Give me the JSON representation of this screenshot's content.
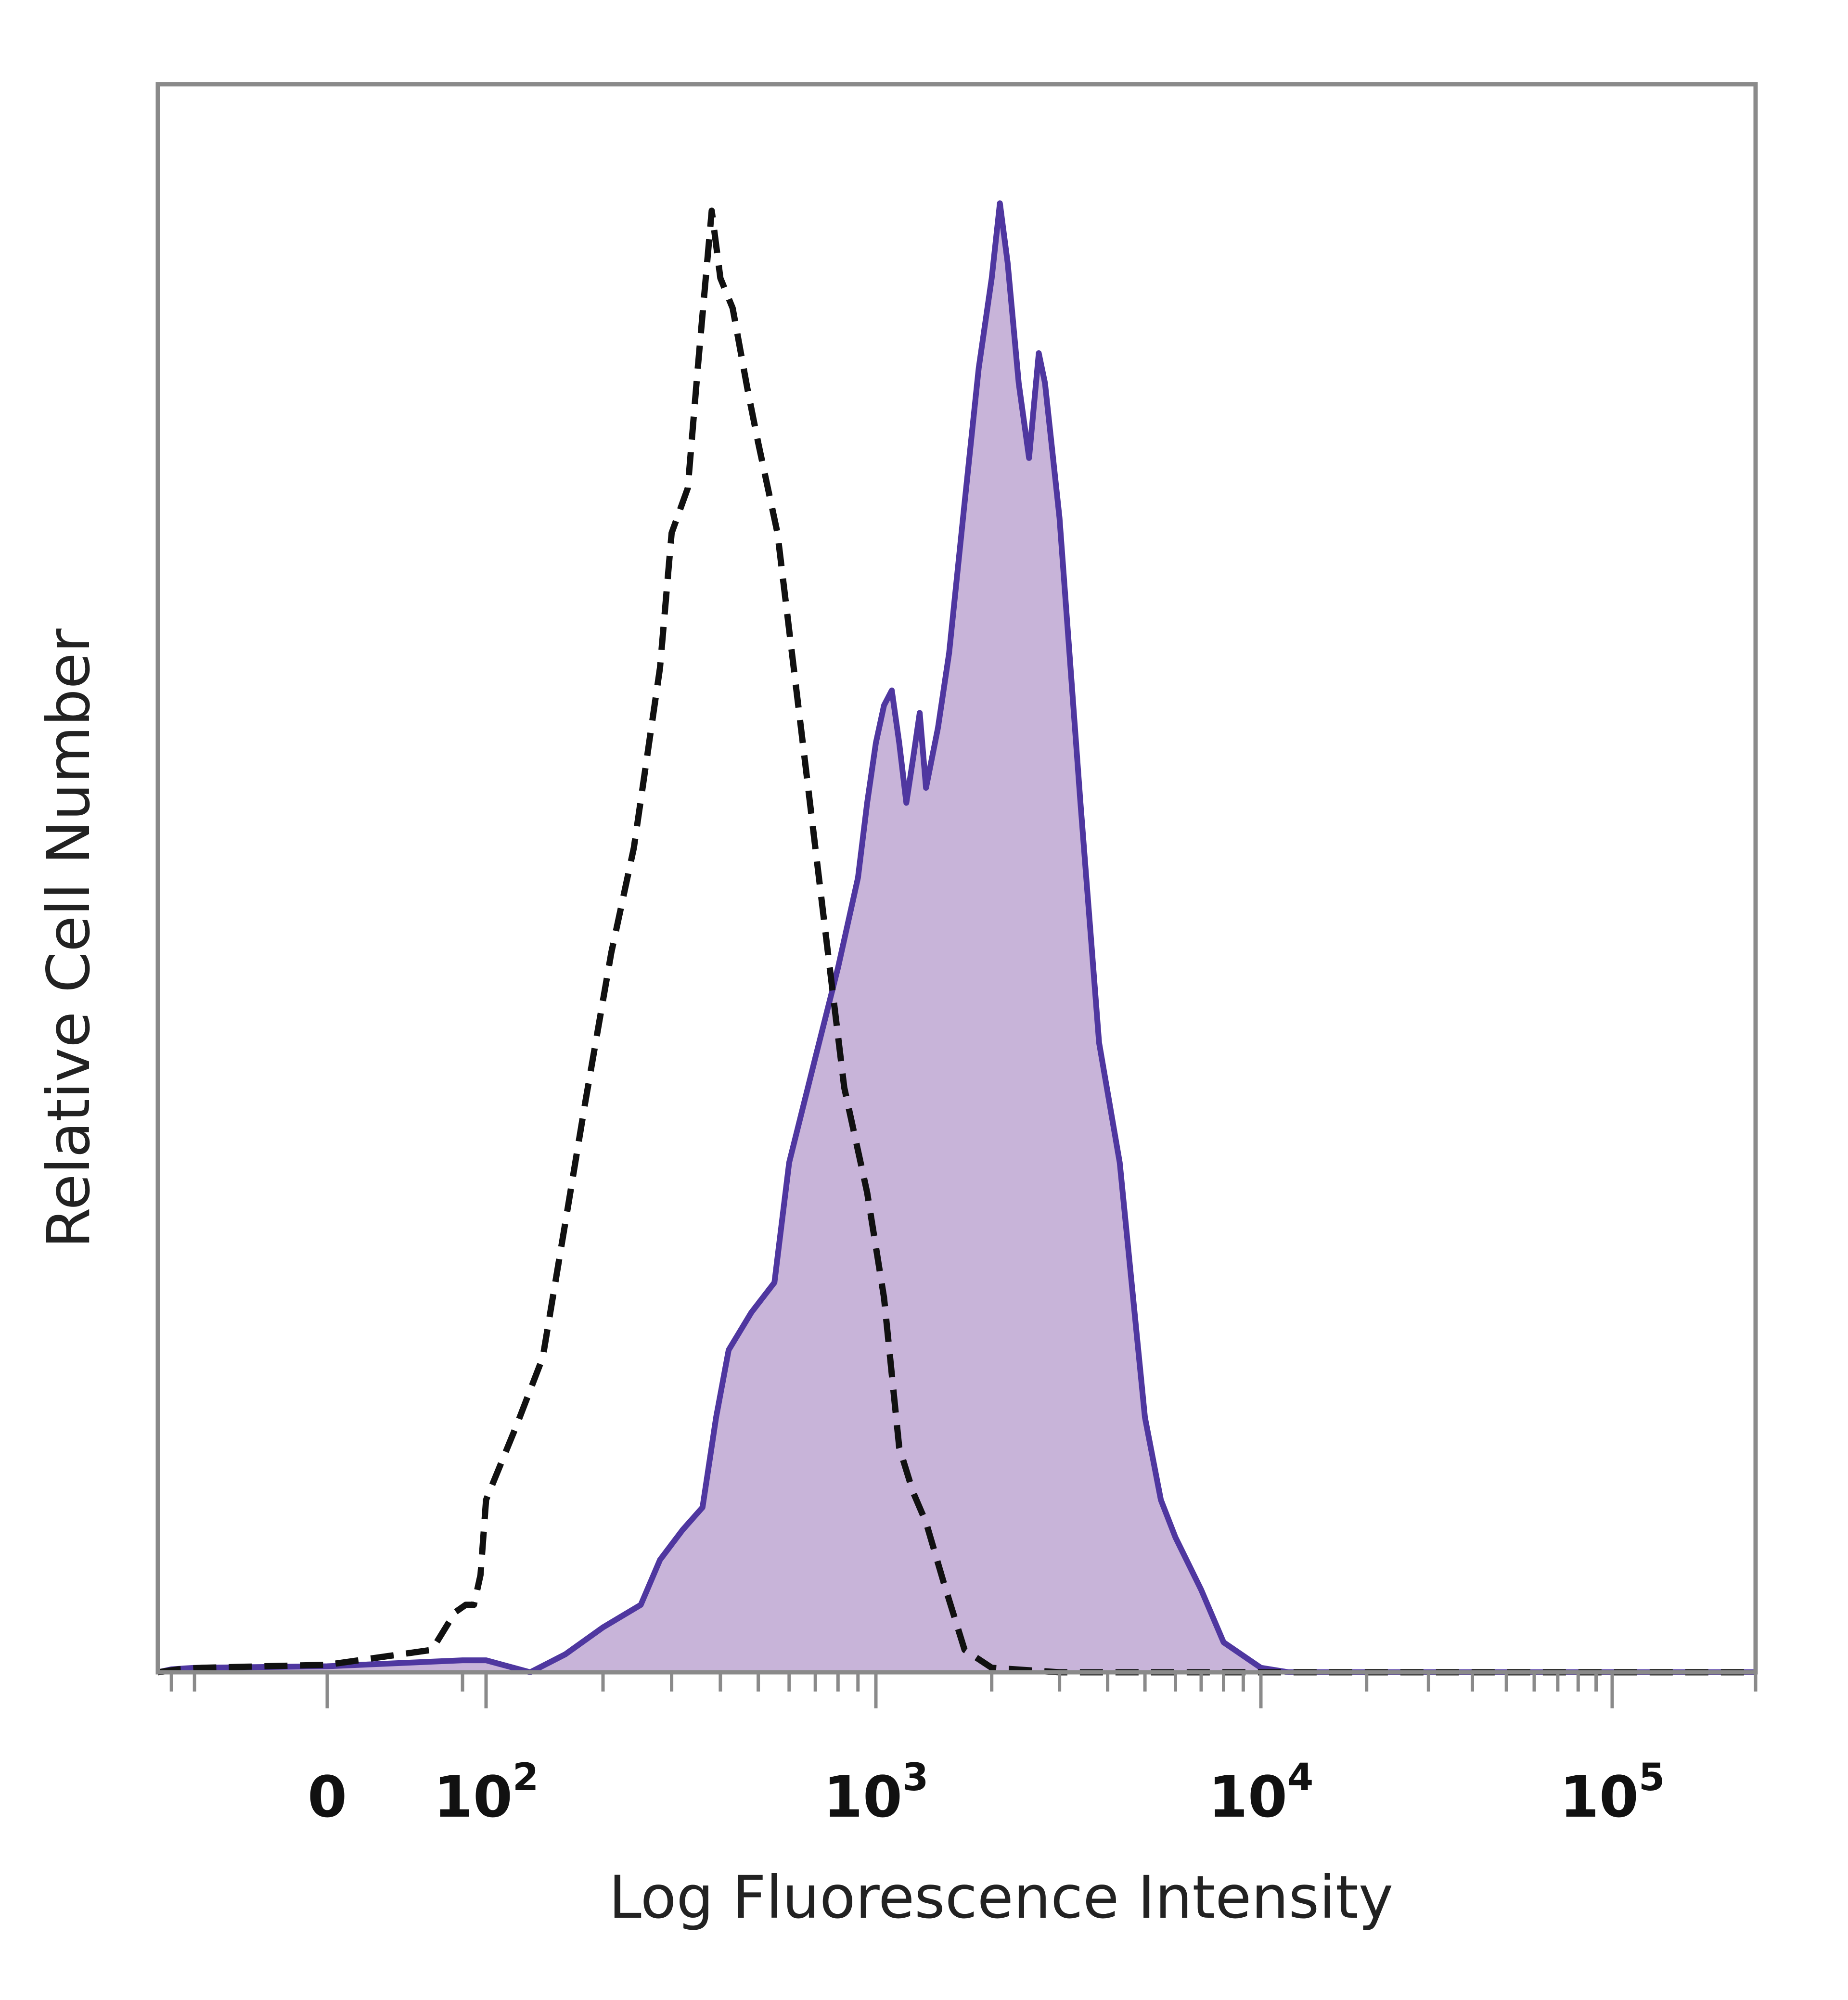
{
  "chart_data": {
    "type": "area",
    "title": "",
    "xlabel": "Log Fluorescence Intensity",
    "ylabel": "Relative Cell Number",
    "x_scale": "biexponential",
    "xlim": [
      -150,
      200000
    ],
    "ylim": [
      0,
      100
    ],
    "grid": false,
    "legend": "none",
    "x_ticks": [
      {
        "value": 0,
        "base": "0",
        "exp": ""
      },
      {
        "value": 100,
        "base": "10",
        "exp": "2"
      },
      {
        "value": 1000,
        "base": "10",
        "exp": "3"
      },
      {
        "value": 10000,
        "base": "10",
        "exp": "4"
      },
      {
        "value": 100000,
        "base": "10",
        "exp": "5"
      }
    ],
    "series": [
      {
        "style": "dashed",
        "fill": false,
        "color": "#111111",
        "points": [
          [
            -150,
            0
          ],
          [
            -80,
            0.2
          ],
          [
            -40,
            0.3
          ],
          [
            0,
            0.5
          ],
          [
            20,
            1.5
          ],
          [
            40,
            4
          ],
          [
            55,
            4.5
          ],
          [
            70,
            4.5
          ],
          [
            85,
            6.5
          ],
          [
            100,
            11.5
          ],
          [
            120,
            16.5
          ],
          [
            140,
            21
          ],
          [
            160,
            30
          ],
          [
            180,
            38
          ],
          [
            210,
            48
          ],
          [
            240,
            55
          ],
          [
            280,
            67
          ],
          [
            300,
            76
          ],
          [
            330,
            79
          ],
          [
            350,
            87
          ],
          [
            380,
            97.5
          ],
          [
            400,
            93
          ],
          [
            430,
            91
          ],
          [
            470,
            85.5
          ],
          [
            500,
            82
          ],
          [
            560,
            76
          ],
          [
            650,
            62
          ],
          [
            750,
            48.5
          ],
          [
            830,
            39
          ],
          [
            950,
            32
          ],
          [
            1050,
            25
          ],
          [
            1150,
            15
          ],
          [
            1250,
            12
          ],
          [
            1350,
            10
          ],
          [
            1500,
            6
          ],
          [
            1700,
            1.5
          ],
          [
            2000,
            0.3
          ],
          [
            3000,
            0
          ],
          [
            10000,
            0
          ],
          [
            200000,
            0
          ]
        ]
      },
      {
        "style": "solid",
        "fill": true,
        "color": "#4f37a0",
        "fill_color": "#c8b4d9",
        "points": [
          [
            -150,
            0
          ],
          [
            -100,
            0.2
          ],
          [
            -50,
            0.3
          ],
          [
            0,
            0.4
          ],
          [
            50,
            0.8
          ],
          [
            100,
            0.8
          ],
          [
            130,
            0
          ],
          [
            160,
            1.2
          ],
          [
            200,
            3
          ],
          [
            250,
            4.5
          ],
          [
            280,
            7.5
          ],
          [
            320,
            9.5
          ],
          [
            360,
            11
          ],
          [
            390,
            17
          ],
          [
            420,
            21.5
          ],
          [
            480,
            24
          ],
          [
            550,
            26
          ],
          [
            600,
            34
          ],
          [
            700,
            41
          ],
          [
            800,
            47
          ],
          [
            900,
            53
          ],
          [
            950,
            58
          ],
          [
            1000,
            62
          ],
          [
            1050,
            64.5
          ],
          [
            1100,
            65.5
          ],
          [
            1150,
            62
          ],
          [
            1200,
            58
          ],
          [
            1250,
            61
          ],
          [
            1300,
            64
          ],
          [
            1350,
            59
          ],
          [
            1450,
            63
          ],
          [
            1550,
            68
          ],
          [
            1700,
            78
          ],
          [
            1850,
            87
          ],
          [
            2000,
            93
          ],
          [
            2100,
            98
          ],
          [
            2200,
            94
          ],
          [
            2350,
            86
          ],
          [
            2500,
            81
          ],
          [
            2650,
            88
          ],
          [
            2750,
            86
          ],
          [
            3000,
            77
          ],
          [
            3400,
            58
          ],
          [
            3800,
            42
          ],
          [
            4300,
            34
          ],
          [
            5000,
            17
          ],
          [
            5500,
            11.5
          ],
          [
            6000,
            9
          ],
          [
            7000,
            5.5
          ],
          [
            8000,
            2
          ],
          [
            10000,
            0.3
          ],
          [
            12000,
            0
          ],
          [
            20000,
            0
          ],
          [
            100000,
            0
          ],
          [
            200000,
            0
          ]
        ]
      }
    ]
  }
}
